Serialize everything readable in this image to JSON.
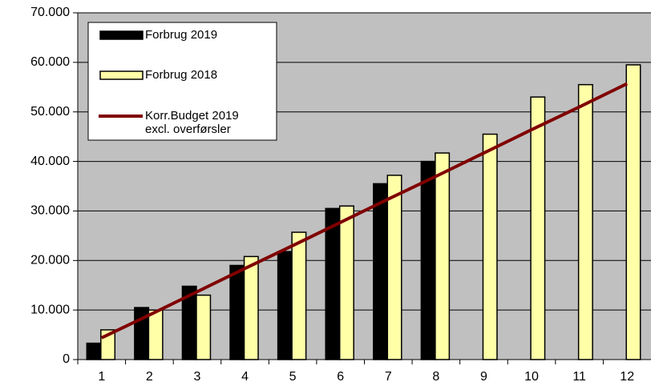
{
  "chart_data": {
    "type": "bar",
    "categories": [
      "1",
      "2",
      "3",
      "4",
      "5",
      "6",
      "7",
      "8",
      "9",
      "10",
      "11",
      "12"
    ],
    "series": [
      {
        "name": "Forbrug 2019",
        "color": "#000000",
        "type": "bar",
        "values": [
          3300,
          10500,
          14800,
          19000,
          21800,
          30500,
          35500,
          40000,
          null,
          null,
          null,
          null
        ]
      },
      {
        "name": "Forbrug 2018",
        "color": "#ffffa8",
        "type": "bar",
        "values": [
          6000,
          10000,
          13000,
          20800,
          25700,
          31000,
          37200,
          41700,
          45500,
          53000,
          55500,
          59500
        ]
      },
      {
        "name": "Korr.Budget 2019 excl. overførsler",
        "color": "#800000",
        "type": "line",
        "values": [
          4400,
          9000,
          13700,
          18400,
          23000,
          27700,
          32400,
          37000,
          41700,
          46400,
          51000,
          55700
        ]
      }
    ],
    "ylim": [
      0,
      70000
    ],
    "yticks": [
      0,
      {
        "value": 10000,
        "label": "10.000"
      },
      {
        "value": 20000,
        "label": "20.000"
      },
      {
        "value": 30000,
        "label": "30.000"
      },
      {
        "value": 40000,
        "label": "40.000"
      },
      {
        "value": 50000,
        "label": "50.000"
      },
      {
        "value": 60000,
        "label": "60.000"
      },
      {
        "value": 70000,
        "label": "70.000"
      }
    ],
    "grid": true,
    "background": "#c0c0c0",
    "legend": "upper left"
  }
}
